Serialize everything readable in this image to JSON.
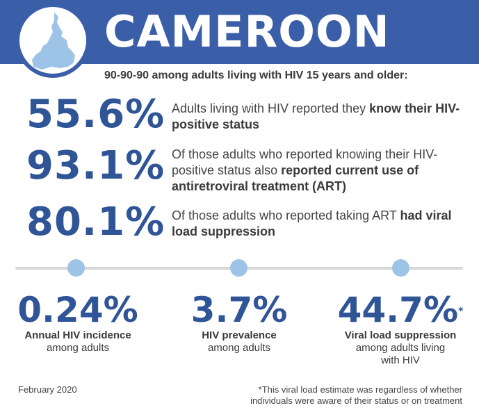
{
  "header": {
    "country": "CAMEROON",
    "subtitle": "90-90-90 among adults living with HIV 15 years and older:",
    "banner_color": "#3a5fa8",
    "map_icon": "cameroon-map-icon",
    "map_color": "#9dc3e6"
  },
  "cascade": [
    {
      "value": "55.6%",
      "text": "Adults living with HIV reported they ",
      "bold": "know their HIV-positive status"
    },
    {
      "value": "93.1%",
      "text": "Of those adults who reported knowing their HIV-positive status also ",
      "bold": "reported current use of antiretroviral treatment (ART)"
    },
    {
      "value": "80.1%",
      "text": "Of those adults who reported taking ART ",
      "bold": "had viral load suppression"
    }
  ],
  "metrics": [
    {
      "value": "0.24%",
      "label": "Annual HIV incidence",
      "sub": "among adults"
    },
    {
      "value": "3.7%",
      "label": "HIV prevalence",
      "sub": "among adults"
    },
    {
      "value": "44.7%",
      "marker": "*",
      "label": "Viral load suppression",
      "sub": "among adults living with HIV"
    }
  ],
  "footer": {
    "date": "February 2020",
    "note": "*This viral load estimate was regardless of whether individuals were aware of their status or on treatment"
  },
  "colors": {
    "accent": "#2f5597",
    "dot": "#9dc3e6",
    "divider": "#d7d7d7"
  }
}
